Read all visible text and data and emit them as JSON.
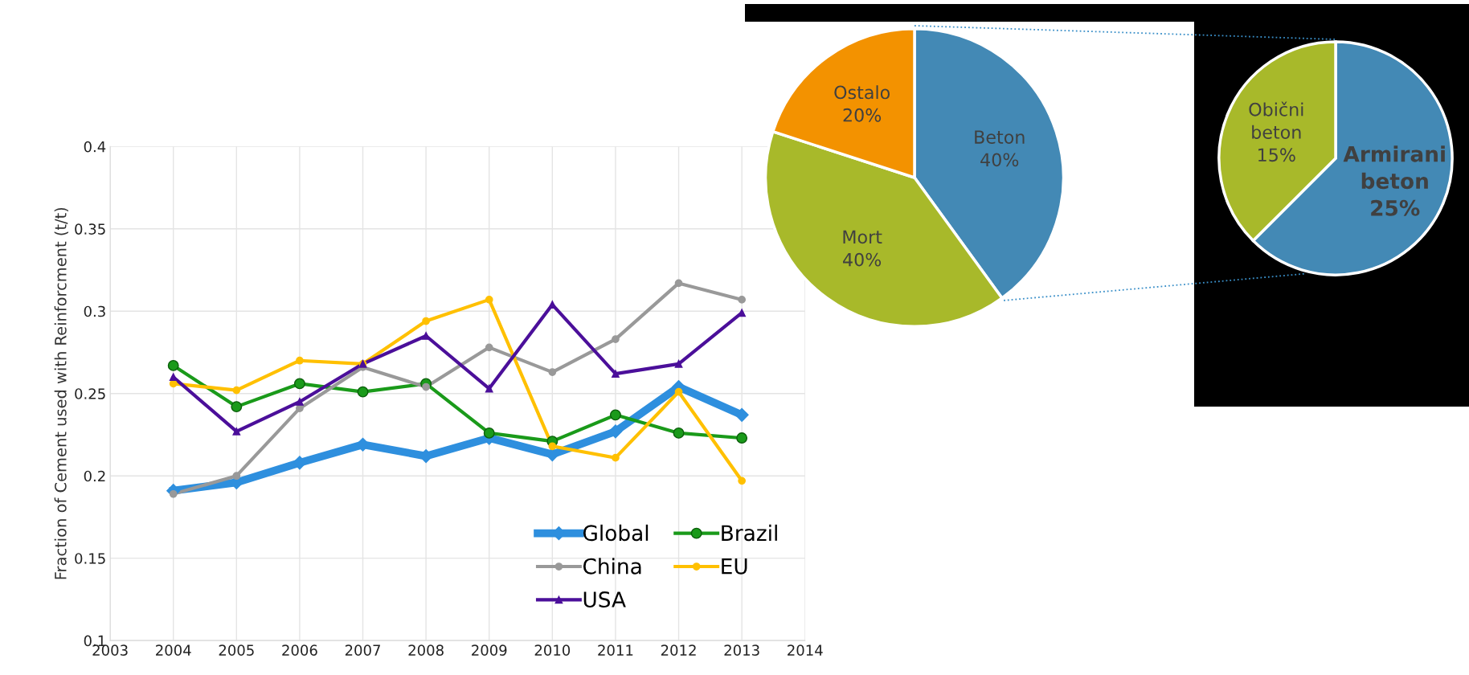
{
  "chart_data": [
    {
      "type": "line",
      "ylabel": "Fraction of Cement used with Reinforcment (t/t)",
      "x": [
        2004,
        2005,
        2006,
        2007,
        2008,
        2009,
        2010,
        2011,
        2012,
        2013
      ],
      "series": [
        {
          "name": "Global",
          "color": "#2e8fde",
          "marker": "diamond",
          "values": [
            0.191,
            0.196,
            0.208,
            0.219,
            0.212,
            0.223,
            0.213,
            0.227,
            0.254,
            0.237
          ]
        },
        {
          "name": "Brazil",
          "color": "#1a9a1a",
          "marker": "circle",
          "values": [
            0.267,
            0.242,
            0.256,
            0.251,
            0.256,
            0.226,
            0.221,
            0.237,
            0.226,
            0.223
          ]
        },
        {
          "name": "China",
          "color": "#999999",
          "marker": "circle",
          "values": [
            0.189,
            0.2,
            0.241,
            0.266,
            0.254,
            0.278,
            0.263,
            0.283,
            0.317,
            0.307
          ]
        },
        {
          "name": "EU",
          "color": "#ffc000",
          "marker": "circle",
          "values": [
            0.256,
            0.252,
            0.27,
            0.268,
            0.294,
            0.307,
            0.218,
            0.211,
            0.251,
            0.197
          ]
        },
        {
          "name": "USA",
          "color": "#4b0f9a",
          "marker": "triangle",
          "values": [
            0.26,
            0.227,
            0.245,
            0.268,
            0.285,
            0.253,
            0.304,
            0.262,
            0.268,
            0.299
          ]
        }
      ],
      "xlim": [
        2003,
        2014
      ],
      "xticks": [
        2003,
        2004,
        2005,
        2006,
        2007,
        2008,
        2009,
        2010,
        2011,
        2012,
        2013,
        2014
      ],
      "ylim": [
        0.1,
        0.4
      ],
      "yticks": [
        0.1,
        0.15,
        0.2,
        0.25,
        0.3,
        0.35,
        0.4
      ],
      "grid": true,
      "legend": "bottom right"
    },
    {
      "type": "pie",
      "categories": [
        "Beton",
        "Mort",
        "Ostalo"
      ],
      "values": [
        40,
        40,
        20
      ],
      "colors": [
        "#4389b5",
        "#a8b92a",
        "#f39200"
      ],
      "value_labels": [
        "40%",
        "40%",
        "20%"
      ]
    },
    {
      "type": "pie",
      "categories": [
        "Armirani beton",
        "Obični beton"
      ],
      "values": [
        25,
        15
      ],
      "colors": [
        "#4389b5",
        "#a8b92a"
      ],
      "value_labels": [
        "25%",
        "15%"
      ]
    }
  ]
}
